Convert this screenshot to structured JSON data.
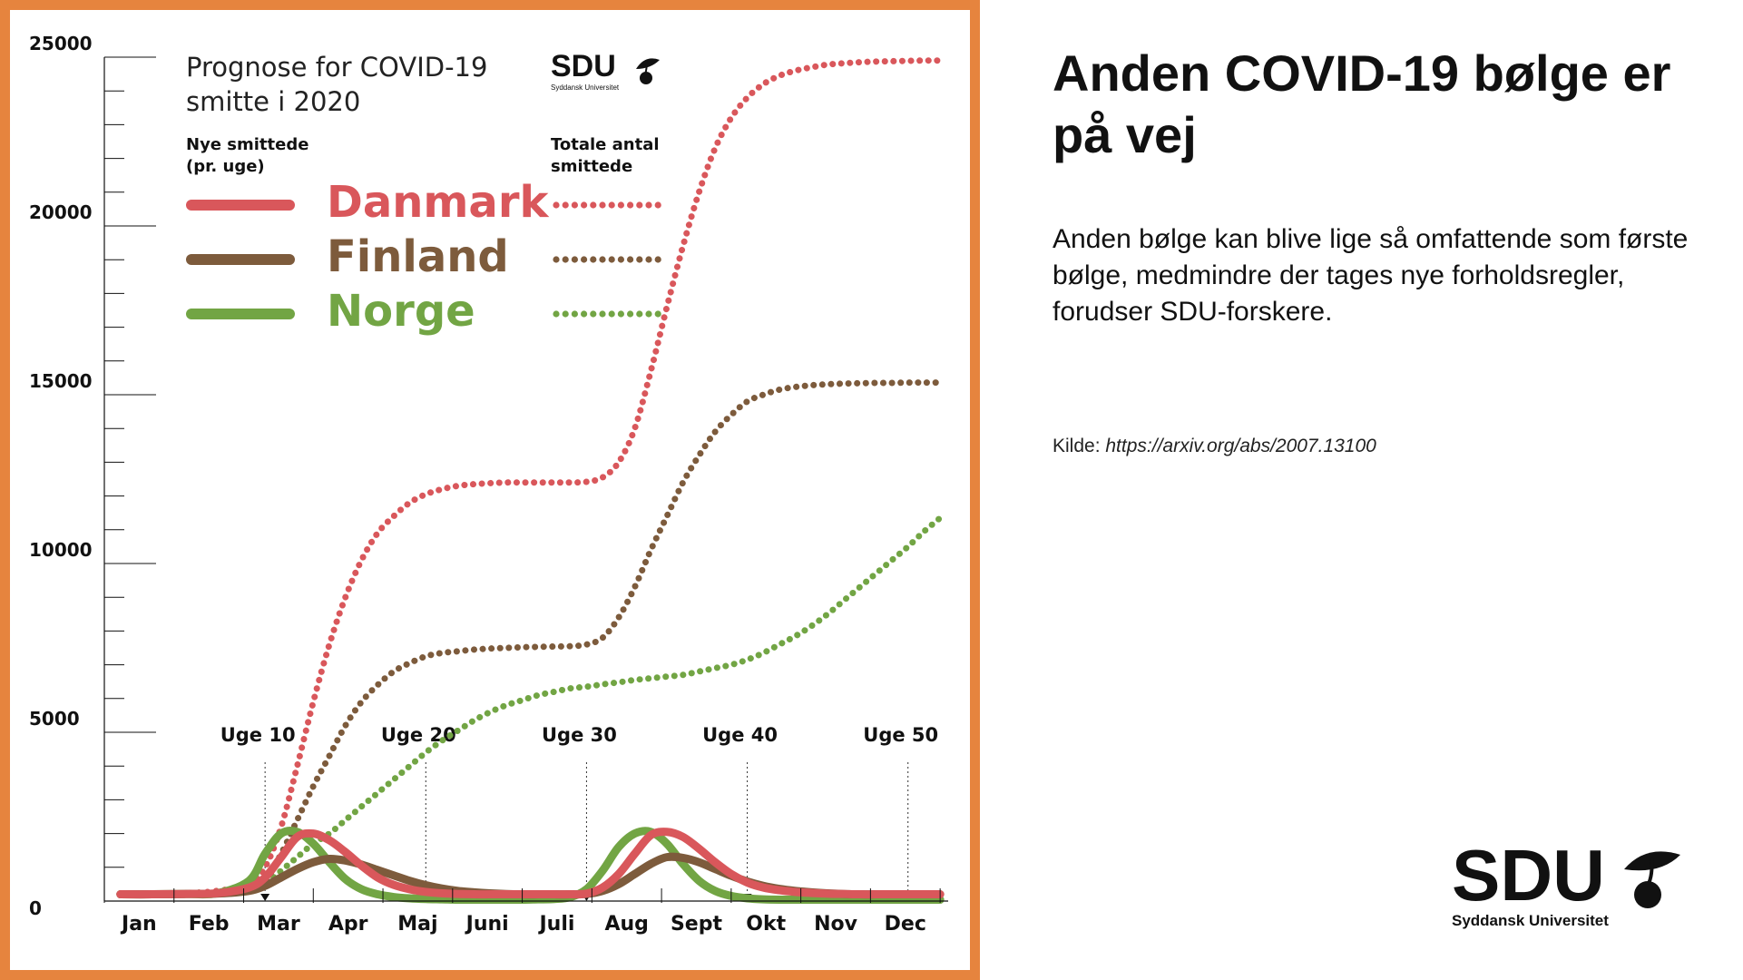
{
  "side": {
    "title": "Anden COVID-19 bølge er på vej",
    "body": "Anden bølge kan blive lige så omfattende som første bølge, medmindre der tages nye forholdsregler, forudser SDU-forskere.",
    "source_label": "Kilde:",
    "source_url": "https://arxiv.org/abs/2007.13100"
  },
  "logo": {
    "text": "SDU",
    "subtitle": "Syddansk Universitet"
  },
  "colors": {
    "frame": "#E6843E",
    "danmark": "#D9575B",
    "finland": "#7D5B3C",
    "norge": "#72A544"
  },
  "chart_data": {
    "type": "line",
    "title": "Prognose for COVID-19 smitte i 2020",
    "weekly_label": "Nye smittede (pr. uge)",
    "total_label": "Totale antal smittede",
    "ylim": [
      0,
      25000
    ],
    "yticks": [
      "0",
      "5000",
      "10000",
      "15000",
      "20000",
      "25000"
    ],
    "ytick_values": [
      0,
      5000,
      10000,
      15000,
      20000,
      25000
    ],
    "months": [
      "Jan",
      "Feb",
      "Mar",
      "Apr",
      "Maj",
      "Juni",
      "Juli",
      "Aug",
      "Sept",
      "Okt",
      "Nov",
      "Dec"
    ],
    "week_markers": [
      {
        "label": "Uge 10",
        "week": 10
      },
      {
        "label": "Uge 20",
        "week": 20
      },
      {
        "label": "Uge 30",
        "week": 30
      },
      {
        "label": "Uge 40",
        "week": 40
      },
      {
        "label": "Uge 50",
        "week": 50
      }
    ],
    "x_unit": "week",
    "x": [
      1,
      3,
      5,
      7,
      9,
      10,
      11,
      12,
      13,
      14,
      15,
      16,
      17,
      18,
      19,
      20,
      21,
      22,
      23,
      24,
      25,
      26,
      27,
      28,
      29,
      30,
      31,
      32,
      33,
      34,
      35,
      36,
      37,
      38,
      39,
      40,
      41,
      42,
      43,
      44,
      45,
      46,
      47,
      48,
      49,
      50,
      51,
      52
    ],
    "series": [
      {
        "name": "Danmark",
        "color": "#D9575B",
        "kind": "weekly",
        "values": [
          200,
          200,
          210,
          230,
          400,
          700,
          1300,
          1900,
          2000,
          1800,
          1450,
          1050,
          700,
          480,
          350,
          270,
          230,
          210,
          200,
          200,
          200,
          200,
          200,
          200,
          200,
          220,
          400,
          800,
          1400,
          1950,
          2050,
          1900,
          1550,
          1150,
          800,
          550,
          400,
          320,
          270,
          240,
          220,
          210,
          200,
          200,
          200,
          200,
          200,
          200
        ]
      },
      {
        "name": "Finland",
        "color": "#7D5B3C",
        "kind": "weekly",
        "values": [
          200,
          200,
          210,
          220,
          300,
          450,
          700,
          950,
          1150,
          1250,
          1200,
          1080,
          920,
          760,
          600,
          470,
          370,
          300,
          260,
          230,
          210,
          200,
          200,
          200,
          200,
          210,
          300,
          500,
          800,
          1100,
          1300,
          1280,
          1150,
          950,
          750,
          580,
          450,
          360,
          300,
          260,
          230,
          210,
          200,
          200,
          200,
          200,
          200,
          200
        ]
      },
      {
        "name": "Norge",
        "color": "#72A544",
        "kind": "weekly",
        "values": [
          200,
          200,
          210,
          230,
          600,
          1400,
          2000,
          2050,
          1700,
          1150,
          650,
          350,
          200,
          120,
          80,
          60,
          50,
          40,
          40,
          40,
          40,
          40,
          50,
          60,
          120,
          350,
          900,
          1600,
          2000,
          2050,
          1700,
          1100,
          600,
          300,
          150,
          80,
          50,
          40,
          40,
          40,
          40,
          40,
          40,
          40,
          40,
          40,
          40,
          40
        ]
      },
      {
        "name": "Danmark",
        "color": "#D9575B",
        "kind": "total",
        "values": [
          200,
          210,
          230,
          300,
          500,
          1000,
          2200,
          4000,
          5900,
          7600,
          9000,
          10100,
          10900,
          11400,
          11800,
          12050,
          12200,
          12300,
          12350,
          12380,
          12400,
          12400,
          12400,
          12400,
          12400,
          12420,
          12550,
          13000,
          14000,
          15700,
          17600,
          19400,
          21000,
          22300,
          23200,
          23800,
          24200,
          24450,
          24600,
          24700,
          24780,
          24820,
          24850,
          24870,
          24880,
          24890,
          24900,
          24900
        ]
      },
      {
        "name": "Finland",
        "color": "#7D5B3C",
        "kind": "total",
        "values": [
          200,
          210,
          230,
          280,
          400,
          600,
          1400,
          2400,
          3400,
          4300,
          5200,
          5900,
          6400,
          6800,
          7050,
          7250,
          7350,
          7400,
          7450,
          7480,
          7500,
          7520,
          7530,
          7540,
          7550,
          7600,
          7800,
          8400,
          9300,
          10400,
          11400,
          12400,
          13200,
          13900,
          14400,
          14800,
          15000,
          15150,
          15230,
          15280,
          15310,
          15330,
          15340,
          15350,
          15350,
          15360,
          15360,
          15360
        ]
      },
      {
        "name": "Norge",
        "color": "#72A544",
        "kind": "total",
        "values": [
          200,
          210,
          230,
          280,
          350,
          500,
          900,
          1300,
          1700,
          2000,
          2400,
          2800,
          3200,
          3600,
          4000,
          4400,
          4750,
          5050,
          5350,
          5600,
          5800,
          5950,
          6100,
          6200,
          6300,
          6350,
          6420,
          6480,
          6550,
          6600,
          6650,
          6700,
          6800,
          6900,
          7000,
          7150,
          7350,
          7600,
          7850,
          8150,
          8500,
          8900,
          9300,
          9700,
          10100,
          10500,
          10950,
          11350
        ]
      }
    ]
  }
}
